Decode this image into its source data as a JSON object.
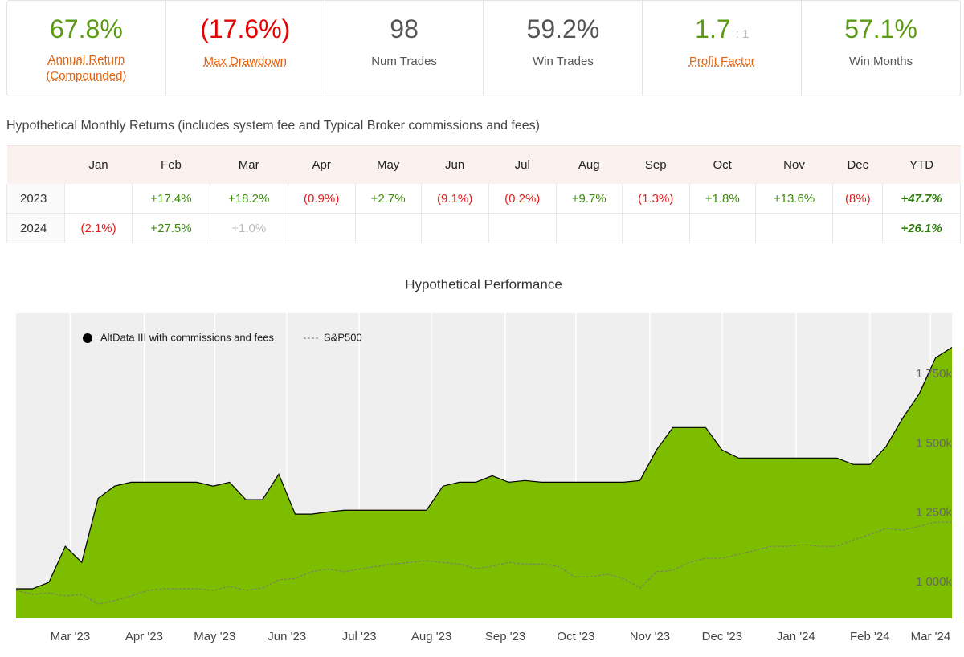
{
  "stats": [
    {
      "value": "67.8%",
      "label": "Annual Return (Compounded)"
    },
    {
      "value": "(17.6%)",
      "label": "Max Drawdown"
    },
    {
      "value": "98",
      "label": "Num Trades"
    },
    {
      "value": "59.2%",
      "label": "Win Trades"
    },
    {
      "value": "1.7",
      "ratio": ": 1",
      "label": "Profit Factor"
    },
    {
      "value": "57.1%",
      "label": "Win Months"
    }
  ],
  "table": {
    "caption": "Hypothetical Monthly Returns (includes system fee and Typical Broker commissions and fees)",
    "header": [
      "Jan",
      "Feb",
      "Mar",
      "Apr",
      "May",
      "Jun",
      "Jul",
      "Aug",
      "Sep",
      "Oct",
      "Nov",
      "Dec",
      "YTD"
    ],
    "rows": [
      {
        "year": "2023",
        "cells": [
          null,
          "+17.4%",
          "+18.2%",
          "(0.9%)",
          "+2.7%",
          "(9.1%)",
          "(0.2%)",
          "+9.7%",
          "(1.3%)",
          "+1.8%",
          "+13.6%",
          "(8%)",
          "+47.7%"
        ]
      },
      {
        "year": "2024",
        "cells": [
          "(2.1%)",
          "+27.5%",
          "+1.0%",
          null,
          null,
          null,
          null,
          null,
          null,
          null,
          null,
          null,
          "+26.1%"
        ]
      }
    ]
  },
  "chart_data": {
    "type": "area",
    "title": "Hypothetical Performance",
    "series": [
      {
        "name": "AltData III with commissions and fees",
        "color": "#7dbd00",
        "values": [
          977,
          977,
          1000,
          1130,
          1072,
          1303,
          1347,
          1361,
          1361,
          1361,
          1361,
          1361,
          1347,
          1361,
          1298,
          1298,
          1390,
          1246,
          1246,
          1254,
          1260,
          1260,
          1260,
          1260,
          1260,
          1260,
          1347,
          1361,
          1361,
          1384,
          1361,
          1367,
          1361,
          1361,
          1361,
          1361,
          1361,
          1361,
          1367,
          1477,
          1558,
          1558,
          1558,
          1477,
          1448,
          1448,
          1448,
          1448,
          1448,
          1448,
          1448,
          1425,
          1425,
          1491,
          1592,
          1679,
          1809,
          1847
        ]
      },
      {
        "name": "S&P500",
        "color": "#777777",
        "values": [
          971,
          957,
          962,
          951,
          957,
          922,
          934,
          951,
          971,
          977,
          977,
          977,
          971,
          986,
          971,
          980,
          1009,
          1014,
          1038,
          1049,
          1038,
          1049,
          1058,
          1066,
          1072,
          1078,
          1072,
          1066,
          1049,
          1058,
          1072,
          1066,
          1066,
          1058,
          1020,
          1020,
          1029,
          1014,
          980,
          1038,
          1043,
          1072,
          1087,
          1087,
          1101,
          1116,
          1130,
          1130,
          1136,
          1130,
          1130,
          1153,
          1173,
          1194,
          1188,
          1202,
          1217,
          1217
        ]
      }
    ],
    "xlim": [
      0,
      57
    ],
    "xticks": [
      {
        "value": 3.3,
        "label": "Mar '23"
      },
      {
        "value": 7.8,
        "label": "Apr '23"
      },
      {
        "value": 12.1,
        "label": "May '23"
      },
      {
        "value": 16.5,
        "label": "Jun '23"
      },
      {
        "value": 20.9,
        "label": "Jul '23"
      },
      {
        "value": 25.3,
        "label": "Aug '23"
      },
      {
        "value": 29.8,
        "label": "Sep '23"
      },
      {
        "value": 34.1,
        "label": "Oct '23"
      },
      {
        "value": 38.6,
        "label": "Nov '23"
      },
      {
        "value": 43.0,
        "label": "Dec '23"
      },
      {
        "value": 47.5,
        "label": "Jan '24"
      },
      {
        "value": 52.0,
        "label": "Feb '24"
      },
      {
        "value": 55.7,
        "label": "Mar '24"
      }
    ],
    "ylim": [
      870,
      1970
    ],
    "yticks": [
      {
        "value": 1000,
        "label": "1 000k"
      },
      {
        "value": 1250,
        "label": "1 250k"
      },
      {
        "value": 1500,
        "label": "1 500k"
      },
      {
        "value": 1750,
        "label": "1 750k"
      }
    ],
    "grid": true
  }
}
